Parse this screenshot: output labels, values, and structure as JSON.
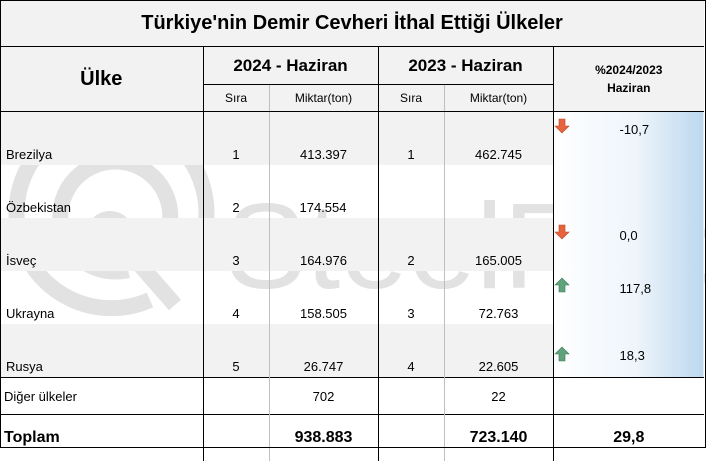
{
  "title": "Türkiye'nin Demir Cevheri İthal Ettiği Ülkeler",
  "headers": {
    "country": "Ülke",
    "year_2024": "2024 - Haziran",
    "year_2023": "2023 - Haziran",
    "pct_line1": "%2024/2023",
    "pct_line2": "Haziran",
    "rank": "Sıra",
    "amount": "Miktar(ton)"
  },
  "rows": [
    {
      "country": "Brezilya",
      "rank_2024": "1",
      "amount_2024": "413.397",
      "rank_2023": "1",
      "amount_2023": "462.745",
      "pct": "-10,7",
      "trend": "down"
    },
    {
      "country": "Özbekistan",
      "rank_2024": "2",
      "amount_2024": "174.554",
      "rank_2023": "",
      "amount_2023": "",
      "pct": "",
      "trend": ""
    },
    {
      "country": "İsveç",
      "rank_2024": "3",
      "amount_2024": "164.976",
      "rank_2023": "2",
      "amount_2023": "165.005",
      "pct": "0,0",
      "trend": "down"
    },
    {
      "country": "Ukrayna",
      "rank_2024": "4",
      "amount_2024": "158.505",
      "rank_2023": "3",
      "amount_2023": "72.763",
      "pct": "117,8",
      "trend": "up"
    },
    {
      "country": "Rusya",
      "rank_2024": "5",
      "amount_2024": "26.747",
      "rank_2023": "4",
      "amount_2023": "22.605",
      "pct": "18,3",
      "trend": "up"
    }
  ],
  "other": {
    "label": "Diğer ülkeler",
    "amount_2024": "702",
    "amount_2023": "22"
  },
  "total": {
    "label": "Toplam",
    "amount_2024": "938.883",
    "amount_2023": "723.140",
    "pct": "29,8"
  },
  "watermark": {
    "text": "SteelRadar"
  },
  "colors": {
    "down": "#e8633c",
    "up": "#5fa37b",
    "header_bg": "#f2f2f2"
  }
}
